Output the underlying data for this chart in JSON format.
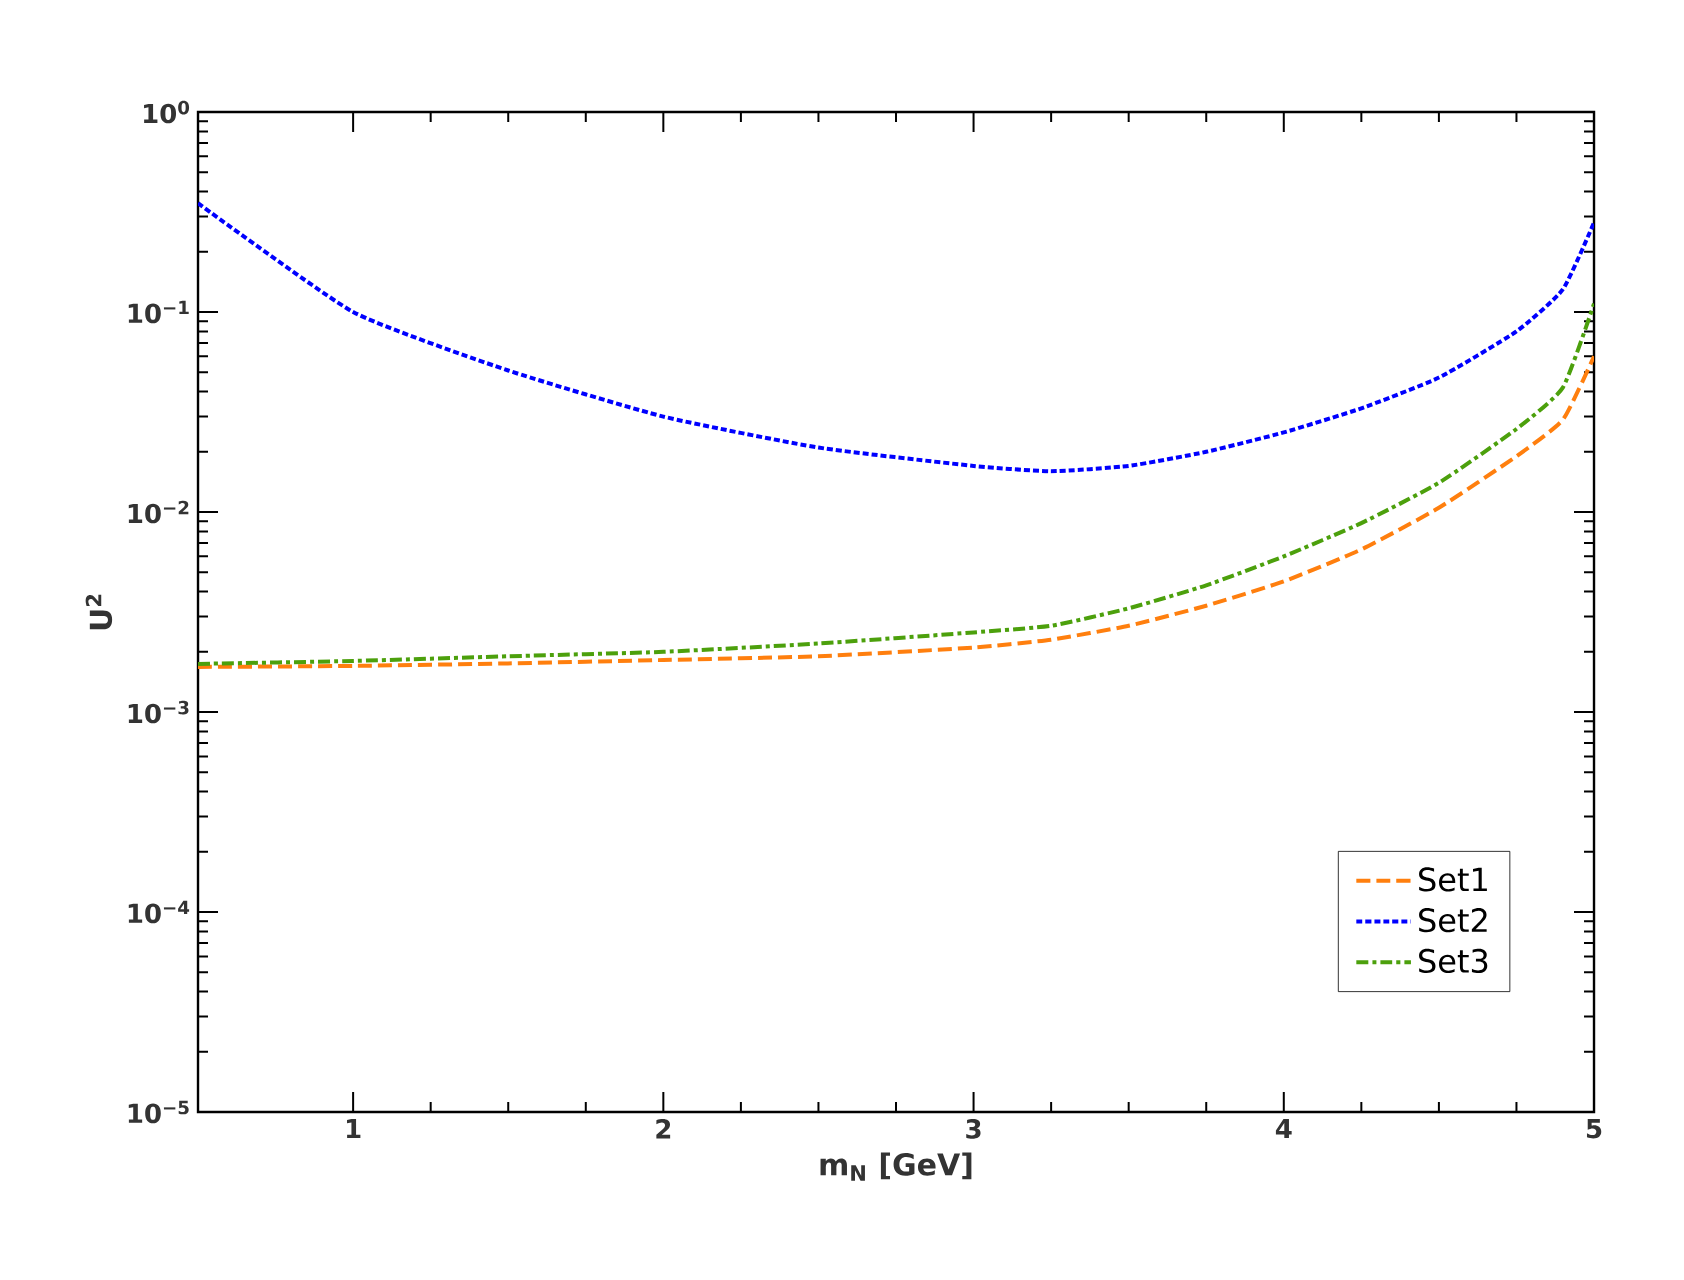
{
  "chart_data": {
    "type": "line",
    "xlabel": "m$_{N}$ [GeV]",
    "ylabel": "U$^{2}$",
    "log": "y",
    "xlim": [
      0.5,
      5
    ],
    "xticks": [
      1,
      2,
      3,
      4,
      5
    ],
    "ylim": [
      1e-05,
      1
    ],
    "yticks": [
      {
        "value": 1e-05,
        "label": "10$^{−5}$"
      },
      {
        "value": 0.0001,
        "label": "10$^{−4}$"
      },
      {
        "value": 0.001,
        "label": "10$^{−3}$"
      },
      {
        "value": 0.01,
        "label": "10$^{−2}$"
      },
      {
        "value": 0.1,
        "label": "10$^{−1}$"
      },
      {
        "value": 1,
        "label": "10$^{0}$"
      }
    ],
    "x": [
      0.5,
      1,
      1.5,
      2,
      2.5,
      3,
      3.25,
      3.5,
      3.75,
      4,
      4.25,
      4.5,
      4.75,
      4.9,
      5
    ],
    "series": [
      {
        "name": "Set1",
        "color": "#ff7f0e",
        "line_style": "dashed",
        "values": [
          0.00168,
          0.0017,
          0.00175,
          0.00182,
          0.0019,
          0.0021,
          0.0023,
          0.0027,
          0.0034,
          0.0045,
          0.0065,
          0.0105,
          0.019,
          0.029,
          0.06
        ]
      },
      {
        "name": "Set2",
        "color": "#0000ff",
        "line_style": "dotted",
        "values": [
          0.35,
          0.1,
          0.051,
          0.03,
          0.021,
          0.017,
          0.016,
          0.017,
          0.02,
          0.025,
          0.033,
          0.047,
          0.08,
          0.13,
          0.28
        ]
      },
      {
        "name": "Set3",
        "color": "#4ca00c",
        "line_style": "dashdot",
        "values": [
          0.00174,
          0.0018,
          0.0019,
          0.002,
          0.0022,
          0.0025,
          0.0027,
          0.0033,
          0.0043,
          0.006,
          0.0088,
          0.014,
          0.026,
          0.042,
          0.11
        ]
      }
    ],
    "legend": "bottom right",
    "grid": false
  }
}
